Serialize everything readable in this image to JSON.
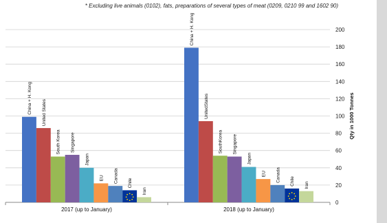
{
  "footnote": "* Excluding live animals (0102), fats, preparations of several types of meat (0209, 0210 99 and 1602 90)",
  "chart_data": {
    "type": "bar",
    "categories": [
      "2017 (up to January)",
      "2018 (up to January)"
    ],
    "series": [
      {
        "name": "China + H. Kong",
        "label_2018": "China + H. Kong",
        "color": "#4472c4",
        "values": [
          99,
          179
        ]
      },
      {
        "name": "United States",
        "label_2018": "UnitedStates",
        "color": "#be4b48",
        "values": [
          86,
          94
        ]
      },
      {
        "name": "South Korea",
        "label_2018": "SouthKorea",
        "color": "#98b954",
        "values": [
          53,
          54
        ]
      },
      {
        "name": "Singapore",
        "label_2018": "Singapore",
        "color": "#7d5fa0",
        "values": [
          55,
          53
        ]
      },
      {
        "name": "Japan",
        "label_2018": "Japan",
        "color": "#4bacc6",
        "values": [
          40,
          41
        ]
      },
      {
        "name": "EU",
        "label_2018": "EU",
        "color": "#f79646",
        "values": [
          22,
          27
        ]
      },
      {
        "name": "Canada",
        "label_2018": "Canada",
        "color": "#4f81bd",
        "values": [
          19,
          20
        ]
      },
      {
        "name": "Chile",
        "label_2018": "Chile",
        "color": "#003399",
        "values": [
          14,
          16
        ]
      },
      {
        "name": "Iran",
        "label_2018": "Iran",
        "color": "#c4d79b",
        "values": [
          6,
          13
        ]
      }
    ],
    "ylabel": "Qty in 1000 Tonnes",
    "ylim": [
      0,
      200
    ],
    "yticks": [
      0,
      20,
      40,
      60,
      80,
      100,
      120,
      140,
      160,
      180,
      200
    ],
    "grid": true,
    "legend": "none",
    "eu_flag_on": "EU bars"
  }
}
